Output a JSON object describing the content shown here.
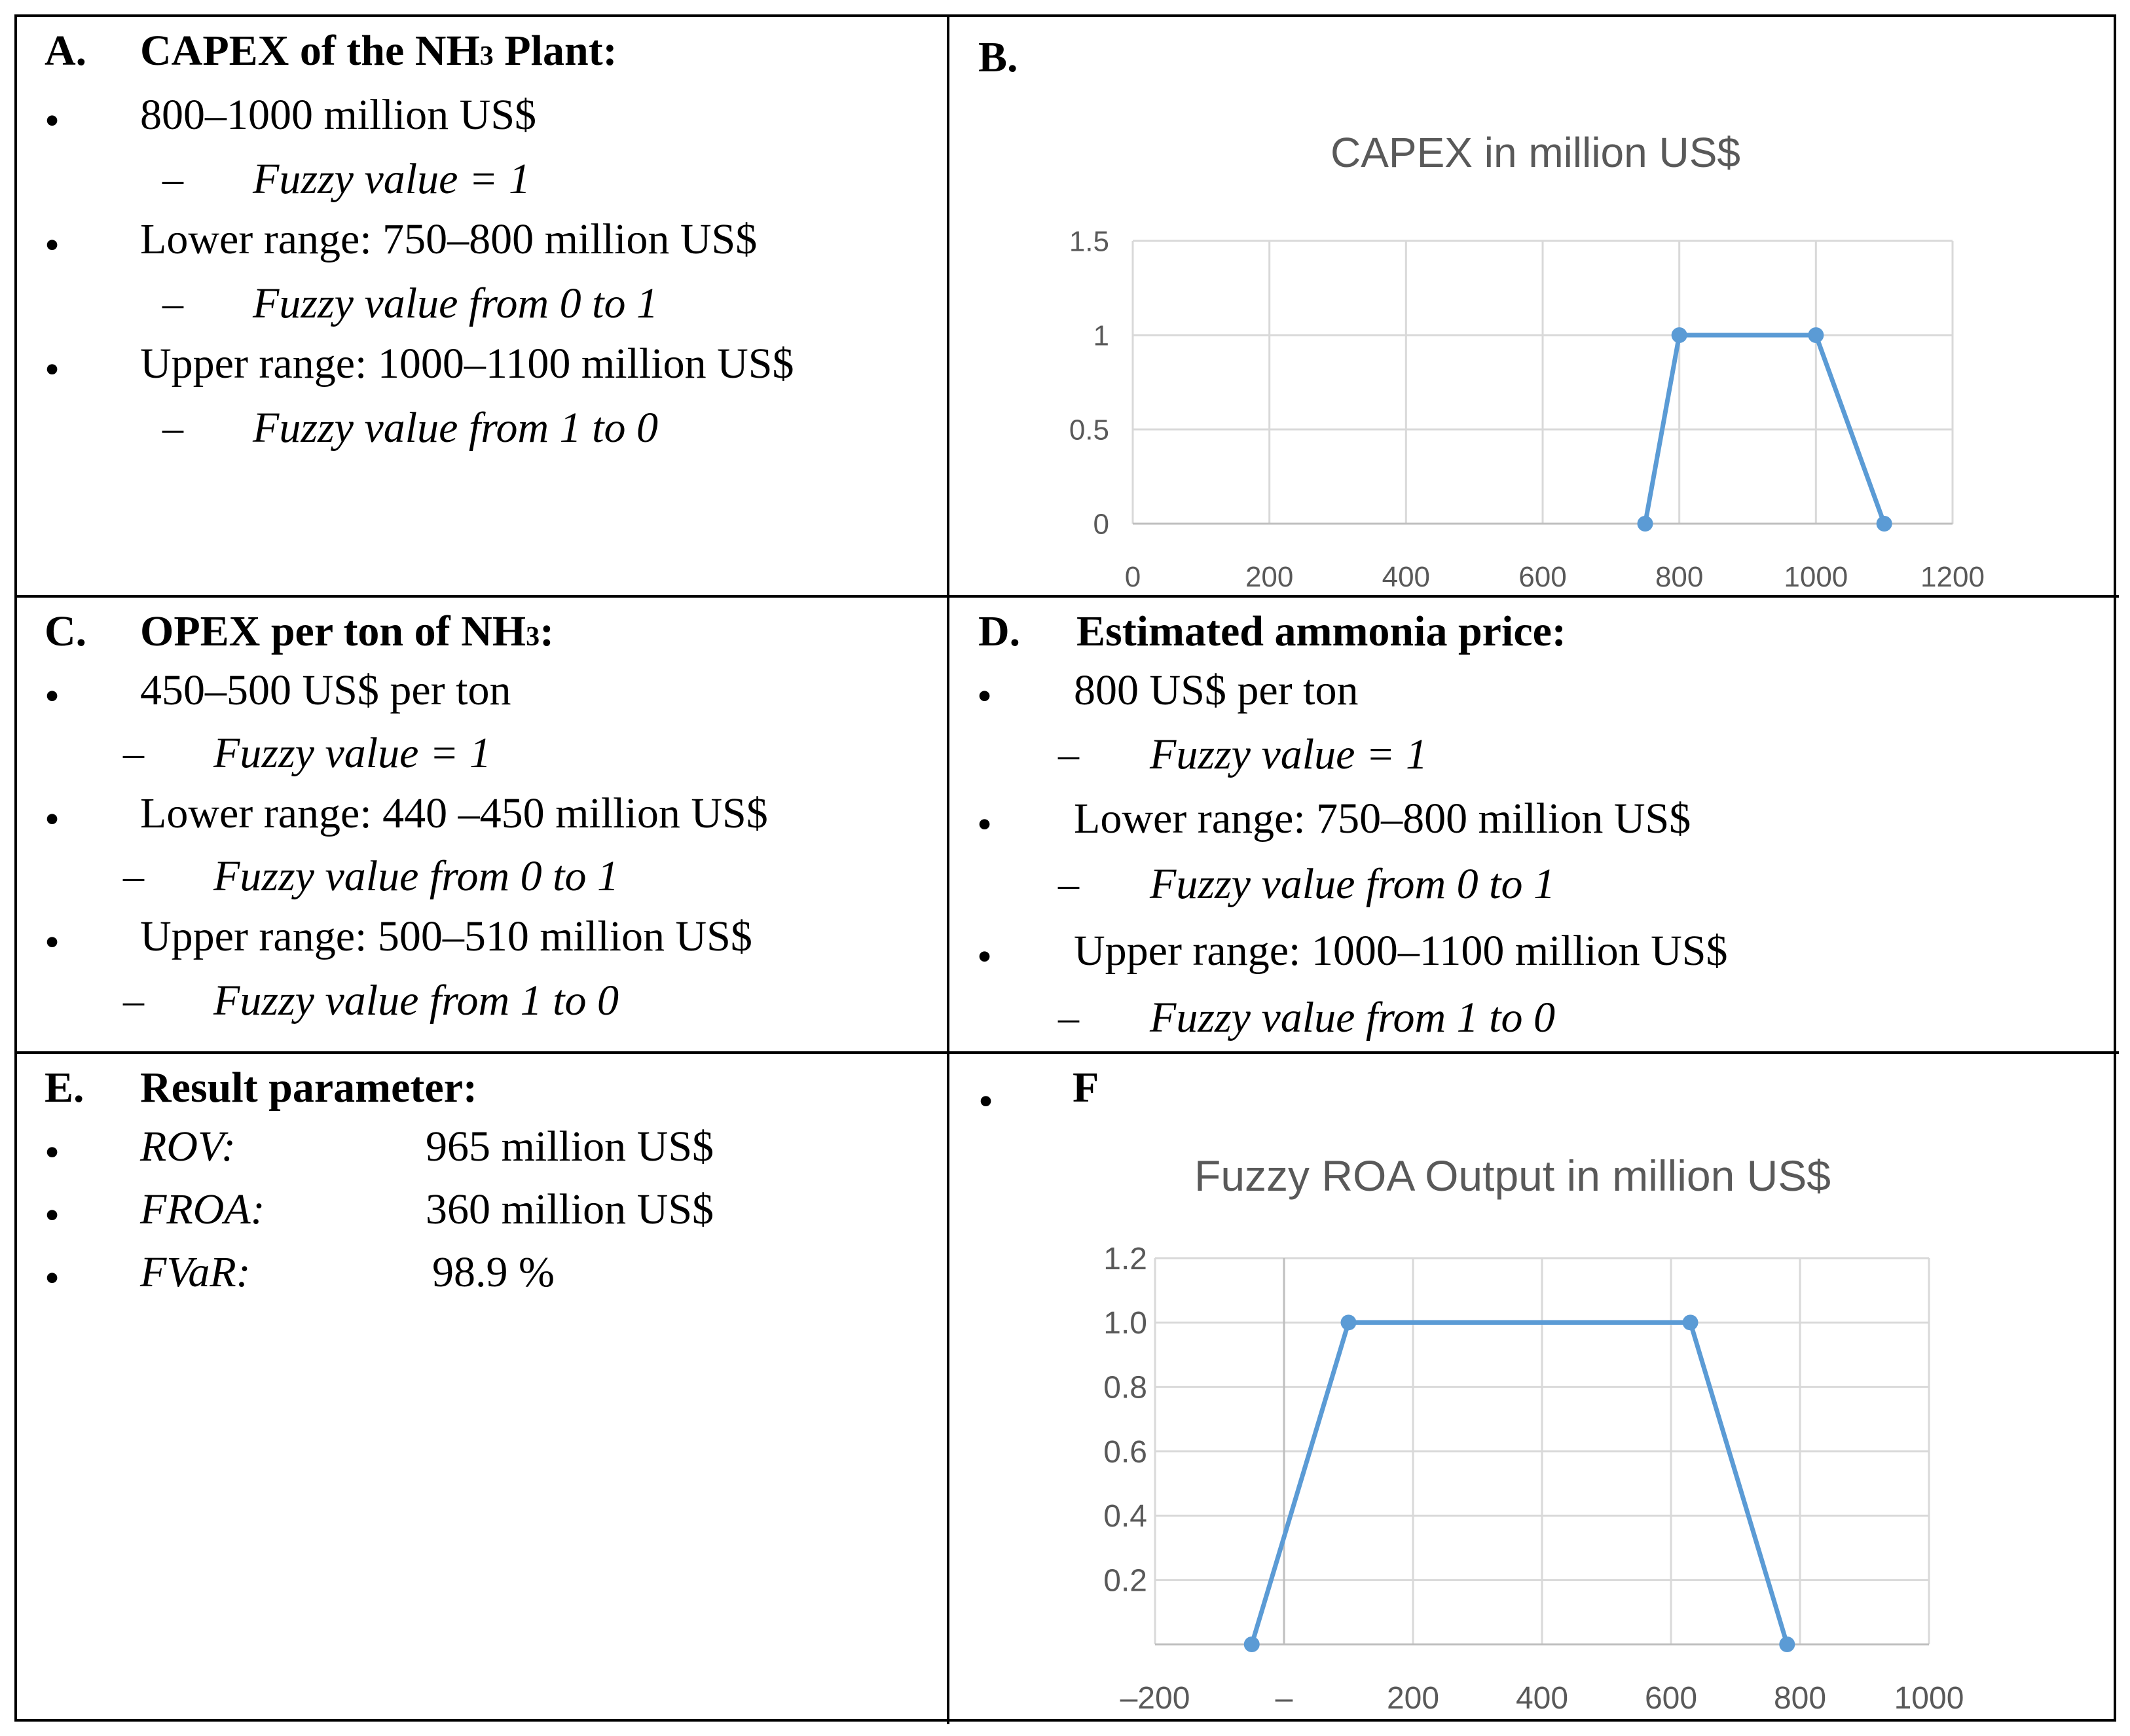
{
  "sections": {
    "a": {
      "label": "A.",
      "title_pre": "CAPEX of the NH",
      "title_sub": "3",
      "title_post": " Plant:",
      "items": [
        {
          "text": "800–1000 million US$",
          "sub": "Fuzzy value = 1"
        },
        {
          "text": "Lower range: 750–800 million US$",
          "sub": "Fuzzy value from 0 to 1"
        },
        {
          "text": "Upper range: 1000–1100 million US$",
          "sub": "Fuzzy value from 1 to 0"
        }
      ]
    },
    "b": {
      "label": "B."
    },
    "c": {
      "label": "C.",
      "title_pre": "OPEX per ton of NH",
      "title_sub": "3",
      "title_post": ":",
      "items": [
        {
          "text": "450–500 US$ per ton",
          "sub": "Fuzzy value = 1"
        },
        {
          "text": "Lower range: 440 –450 million US$",
          "sub": "Fuzzy value from 0 to 1"
        },
        {
          "text": "Upper range: 500–510 million US$",
          "sub": "Fuzzy value from 1 to 0"
        }
      ]
    },
    "d": {
      "label": "D.",
      "title": "Estimated ammonia price:",
      "items": [
        {
          "text": "800 US$ per ton",
          "sub": "Fuzzy value = 1"
        },
        {
          "text": "Lower range: 750–800 million US$",
          "sub": "Fuzzy value from 0 to 1"
        },
        {
          "text": "Upper range: 1000–1100 million US$",
          "sub": "Fuzzy value from 1 to 0"
        }
      ]
    },
    "e": {
      "label": "E.",
      "title": "Result parameter:",
      "params": [
        {
          "name": "ROV:",
          "value": "965 million US$"
        },
        {
          "name": "FROA:",
          "value": "360 million US$"
        },
        {
          "name": "FVaR:",
          "value": "98.9 %"
        }
      ]
    },
    "f": {
      "label": "F"
    }
  },
  "chart_data": [
    {
      "type": "line",
      "title": "CAPEX in million US$",
      "x": [
        750,
        800,
        1000,
        1100
      ],
      "y": [
        0,
        1,
        1,
        0
      ],
      "xlim": [
        0,
        1200
      ],
      "ylim": [
        0,
        1.5
      ],
      "xticks": [
        "0",
        "200",
        "400",
        "600",
        "800",
        "1000",
        "1200"
      ],
      "yticks": [
        "0",
        "0.5",
        "1",
        "1.5"
      ],
      "grid": true,
      "color": "#5b9bd5"
    },
    {
      "type": "line",
      "title": "Fuzzy ROA Output in million US$",
      "x": [
        -50,
        100,
        630,
        780
      ],
      "y": [
        0,
        1,
        1,
        0
      ],
      "xlim": [
        -200,
        1000
      ],
      "ylim": [
        0,
        1.2
      ],
      "xticks": [
        "–200",
        "–",
        "200",
        "400",
        "600",
        "800",
        "1000"
      ],
      "yticks": [
        "",
        "0.2",
        "0.4",
        "0.6",
        "0.8",
        "1.0",
        "1.2"
      ],
      "grid": true,
      "color": "#5b9bd5"
    }
  ]
}
